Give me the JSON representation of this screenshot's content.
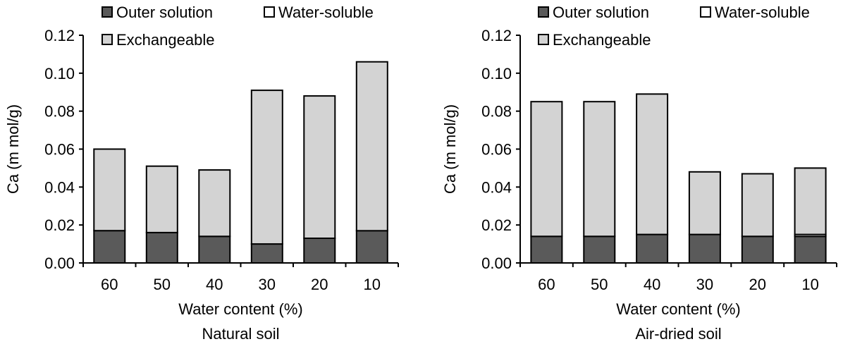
{
  "chart_data": [
    {
      "type": "bar",
      "stacked": true,
      "title": "Natural soil",
      "xlabel": "Water content (%)",
      "ylabel": "Ca (m mol/g)",
      "ylim": [
        0,
        0.12
      ],
      "yticks": [
        "0.00",
        "0.02",
        "0.04",
        "0.06",
        "0.08",
        "0.10",
        "0.12"
      ],
      "categories": [
        "60",
        "50",
        "40",
        "30",
        "20",
        "10"
      ],
      "grid": false,
      "legend_position": "top-left",
      "series": [
        {
          "name": "Outer solution",
          "color": "#5a5a5a",
          "values": [
            0.017,
            0.016,
            0.014,
            0.01,
            0.013,
            0.017
          ]
        },
        {
          "name": "Water-soluble",
          "color": "#ffffff",
          "values": [
            0.0,
            0.0,
            0.0,
            0.0,
            0.0,
            0.0
          ]
        },
        {
          "name": "Exchangeable",
          "color": "#d3d3d3",
          "values": [
            0.043,
            0.035,
            0.035,
            0.081,
            0.075,
            0.089
          ]
        }
      ]
    },
    {
      "type": "bar",
      "stacked": true,
      "title": "Air-dried soil",
      "xlabel": "Water content (%)",
      "ylabel": "Ca (m mol/g)",
      "ylim": [
        0,
        0.12
      ],
      "yticks": [
        "0.00",
        "0.02",
        "0.04",
        "0.06",
        "0.08",
        "0.10",
        "0.12"
      ],
      "categories": [
        "60",
        "50",
        "40",
        "30",
        "20",
        "10"
      ],
      "grid": false,
      "legend_position": "top-left",
      "series": [
        {
          "name": "Outer solution",
          "color": "#5a5a5a",
          "values": [
            0.014,
            0.014,
            0.015,
            0.015,
            0.014,
            0.014
          ]
        },
        {
          "name": "Water-soluble",
          "color": "#ffffff",
          "values": [
            0.0,
            0.0,
            0.0,
            0.0,
            0.0,
            0.001
          ]
        },
        {
          "name": "Exchangeable",
          "color": "#d3d3d3",
          "values": [
            0.071,
            0.071,
            0.074,
            0.033,
            0.033,
            0.035
          ]
        }
      ]
    }
  ]
}
